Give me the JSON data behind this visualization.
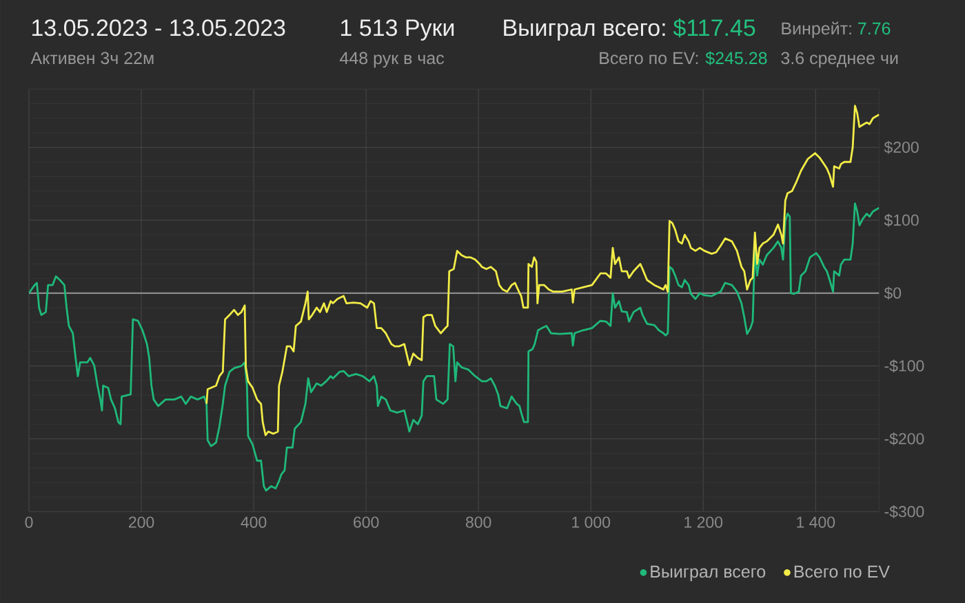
{
  "chart_data": {
    "type": "line",
    "title": "13.05.2023 - 13.05.2023",
    "subtitle": "Активен 3ч 22м",
    "annotations": [
      "1 513 Руки",
      "448 рук в час",
      "Выиграл всего:",
      "$117.45",
      "Всего по EV:",
      "$245.28",
      "Винрейт:",
      "7.76",
      "3.6 среднее чи"
    ],
    "xlim": [
      0,
      1513
    ],
    "ylim": [
      -300,
      280
    ],
    "xticks": [
      0,
      200,
      400,
      600,
      800,
      {
        "value": 1000,
        "label": "1 000"
      },
      {
        "value": 1200,
        "label": "1 200"
      },
      {
        "value": 1400,
        "label": "1 400"
      }
    ],
    "yticks": [
      {
        "value": -300,
        "label": "-$300"
      },
      {
        "value": -200,
        "label": "-$200"
      },
      {
        "value": -100,
        "label": "-$100"
      },
      {
        "value": 0,
        "label": "$0"
      },
      {
        "value": 100,
        "label": "$100"
      },
      {
        "value": 200,
        "label": "$200"
      }
    ],
    "grid": true,
    "legend": "bottom right",
    "ref_lines": [
      {
        "axis": "y",
        "value": 0,
        "color": "#8c8c8c"
      }
    ],
    "series": [
      {
        "name": "Выиграл всего",
        "color": "#1fb97a",
        "x": [
          0,
          10,
          14,
          18,
          22,
          30,
          34,
          42,
          48,
          55,
          63,
          67,
          71,
          78,
          83,
          87,
          91,
          104,
          109,
          116,
          122,
          127,
          130,
          132,
          141,
          146,
          153,
          159,
          163,
          165,
          181,
          185,
          194,
          202,
          210,
          214,
          218,
          222,
          230,
          243,
          259,
          271,
          279,
          288,
          300,
          312,
          316,
          318,
          324,
          333,
          339,
          345,
          349,
          357,
          365,
          378,
          384,
          388,
          390,
          398,
          406,
          413,
          418,
          422,
          431,
          439,
          445,
          449,
          455,
          459,
          469,
          473,
          484,
          492,
          497,
          502,
          512,
          520,
          529,
          537,
          541,
          553,
          560,
          569,
          582,
          594,
          606,
          614,
          619,
          621,
          627,
          635,
          643,
          655,
          668,
          674,
          677,
          684,
          692,
          699,
          702,
          708,
          721,
          725,
          737,
          745,
          749,
          755,
          759,
          762,
          770,
          782,
          794,
          806,
          814,
          822,
          829,
          835,
          839,
          851,
          859,
          868,
          873,
          876,
          881,
          888,
          889,
          896,
          900,
          906,
          913,
          921,
          929,
          945,
          966,
          968,
          971,
          986,
          1002,
          1017,
          1027,
          1035,
          1039,
          1043,
          1050,
          1055,
          1064,
          1068,
          1076,
          1088,
          1092,
          1100,
          1113,
          1121,
          1129,
          1133,
          1137,
          1140,
          1145,
          1150,
          1156,
          1162,
          1167,
          1174,
          1178,
          1186,
          1194,
          1202,
          1215,
          1223,
          1231,
          1239,
          1251,
          1260,
          1268,
          1273,
          1278,
          1284,
          1288,
          1292,
          1296,
          1300,
          1306,
          1313,
          1325,
          1333,
          1339,
          1342,
          1346,
          1350,
          1354,
          1356,
          1362,
          1370,
          1374,
          1382,
          1390,
          1401,
          1407,
          1415,
          1420,
          1425,
          1431,
          1433,
          1442,
          1445,
          1451,
          1462,
          1466,
          1470,
          1474,
          1478,
          1484,
          1491,
          1496,
          1502,
          1513
        ],
        "values": [
          0,
          11,
          14,
          -20,
          -30,
          -26,
          11,
          11,
          23,
          18,
          11,
          -20,
          -45,
          -55,
          -89,
          -114,
          -95,
          -95,
          -89,
          -99,
          -127,
          -146,
          -161,
          -127,
          -130,
          -146,
          -158,
          -177,
          -180,
          -142,
          -139,
          -36,
          -38,
          -51,
          -70,
          -89,
          -127,
          -146,
          -155,
          -146,
          -146,
          -142,
          -152,
          -142,
          -146,
          -142,
          -152,
          -202,
          -210,
          -205,
          -183,
          -152,
          -127,
          -108,
          -103,
          -100,
          -95,
          -127,
          -196,
          -208,
          -230,
          -230,
          -265,
          -271,
          -265,
          -268,
          -258,
          -249,
          -243,
          -212,
          -212,
          -186,
          -177,
          -152,
          -117,
          -136,
          -124,
          -127,
          -121,
          -114,
          -117,
          -108,
          -107,
          -114,
          -111,
          -114,
          -121,
          -114,
          -127,
          -155,
          -142,
          -146,
          -161,
          -164,
          -161,
          -180,
          -190,
          -174,
          -180,
          -168,
          -121,
          -114,
          -114,
          -146,
          -152,
          -146,
          -70,
          -73,
          -121,
          -95,
          -102,
          -105,
          -114,
          -121,
          -121,
          -117,
          -127,
          -139,
          -155,
          -158,
          -142,
          -152,
          -155,
          -164,
          -177,
          -177,
          -80,
          -77,
          -70,
          -51,
          -48,
          -45,
          -55,
          -56,
          -55,
          -72,
          -55,
          -51,
          -48,
          -38,
          -39,
          -45,
          0,
          -20,
          -11,
          -25,
          -26,
          -39,
          -26,
          -20,
          -30,
          -42,
          -44,
          -51,
          -55,
          -58,
          -55,
          36,
          33,
          24,
          11,
          8,
          18,
          11,
          -1,
          -8,
          0,
          -3,
          -4,
          -1,
          2,
          14,
          11,
          2,
          -14,
          -33,
          -56,
          -48,
          -39,
          62,
          24,
          46,
          39,
          52,
          62,
          71,
          62,
          46,
          99,
          109,
          105,
          0,
          -1,
          2,
          24,
          30,
          49,
          55,
          49,
          36,
          30,
          18,
          2,
          30,
          24,
          39,
          46,
          46,
          68,
          123,
          112,
          93,
          102,
          109,
          105,
          112,
          117
        ]
      },
      {
        "name": "Всего по EV",
        "color": "#f2ec47",
        "x": [
          316,
          318,
          324,
          333,
          339,
          345,
          349,
          357,
          365,
          372,
          378,
          384,
          386,
          390,
          398,
          406,
          413,
          416,
          421,
          426,
          435,
          443,
          445,
          451,
          459,
          465,
          471,
          475,
          484,
          492,
          496,
          498,
          504,
          512,
          518,
          525,
          530,
          537,
          541,
          549,
          560,
          565,
          578,
          590,
          602,
          608,
          614,
          619,
          627,
          635,
          645,
          651,
          659,
          668,
          672,
          677,
          684,
          692,
          699,
          702,
          708,
          717,
          723,
          733,
          741,
          745,
          748,
          756,
          762,
          770,
          778,
          786,
          794,
          802,
          806,
          814,
          822,
          831,
          837,
          843,
          851,
          859,
          865,
          872,
          876,
          880,
          888,
          889,
          895,
          899,
          903,
          905,
          908,
          917,
          925,
          933,
          949,
          966,
          968,
          971,
          986,
          1002,
          1017,
          1027,
          1035,
          1039,
          1043,
          1050,
          1055,
          1064,
          1068,
          1076,
          1088,
          1092,
          1100,
          1113,
          1121,
          1129,
          1133,
          1137,
          1140,
          1145,
          1150,
          1156,
          1162,
          1167,
          1174,
          1178,
          1186,
          1194,
          1202,
          1215,
          1223,
          1231,
          1239,
          1251,
          1260,
          1268,
          1273,
          1278,
          1284,
          1288,
          1292,
          1296,
          1300,
          1306,
          1313,
          1325,
          1333,
          1339,
          1342,
          1346,
          1350,
          1358,
          1366,
          1374,
          1386,
          1399,
          1407,
          1415,
          1420,
          1425,
          1431,
          1433,
          1442,
          1445,
          1451,
          1462,
          1466,
          1470,
          1474,
          1478,
          1484,
          1491,
          1496,
          1502,
          1513
        ],
        "values": [
          -152,
          -132,
          -130,
          -127,
          -114,
          -108,
          -36,
          -30,
          -23,
          -30,
          -26,
          -17,
          -102,
          -121,
          -130,
          -146,
          -152,
          -177,
          -195,
          -190,
          -193,
          -190,
          -127,
          -108,
          -73,
          -73,
          -80,
          -45,
          -39,
          -14,
          2,
          -36,
          -30,
          -20,
          -26,
          -14,
          -26,
          -11,
          -14,
          -8,
          -4,
          -14,
          -13,
          -14,
          -20,
          -11,
          -14,
          -48,
          -48,
          -55,
          -70,
          -73,
          -73,
          -70,
          -83,
          -99,
          -83,
          -89,
          -92,
          -33,
          -30,
          -30,
          -45,
          -55,
          -48,
          -45,
          30,
          33,
          58,
          52,
          49,
          49,
          46,
          40,
          36,
          33,
          36,
          30,
          11,
          5,
          2,
          11,
          14,
          2,
          -4,
          -20,
          -20,
          40,
          36,
          49,
          43,
          -14,
          11,
          11,
          5,
          2,
          2,
          5,
          -13,
          5,
          8,
          11,
          27,
          27,
          21,
          62,
          40,
          49,
          30,
          30,
          21,
          30,
          40,
          33,
          18,
          11,
          8,
          5,
          11,
          2,
          99,
          96,
          87,
          71,
          68,
          80,
          71,
          62,
          58,
          62,
          58,
          54,
          56,
          65,
          75,
          71,
          58,
          36,
          30,
          5,
          18,
          21,
          83,
          40,
          62,
          68,
          71,
          80,
          94,
          80,
          68,
          127,
          137,
          140,
          153,
          168,
          184,
          192,
          186,
          177,
          171,
          162,
          146,
          174,
          171,
          177,
          180,
          180,
          200,
          257,
          247,
          228,
          231,
          234,
          232,
          240,
          245
        ]
      }
    ]
  }
}
